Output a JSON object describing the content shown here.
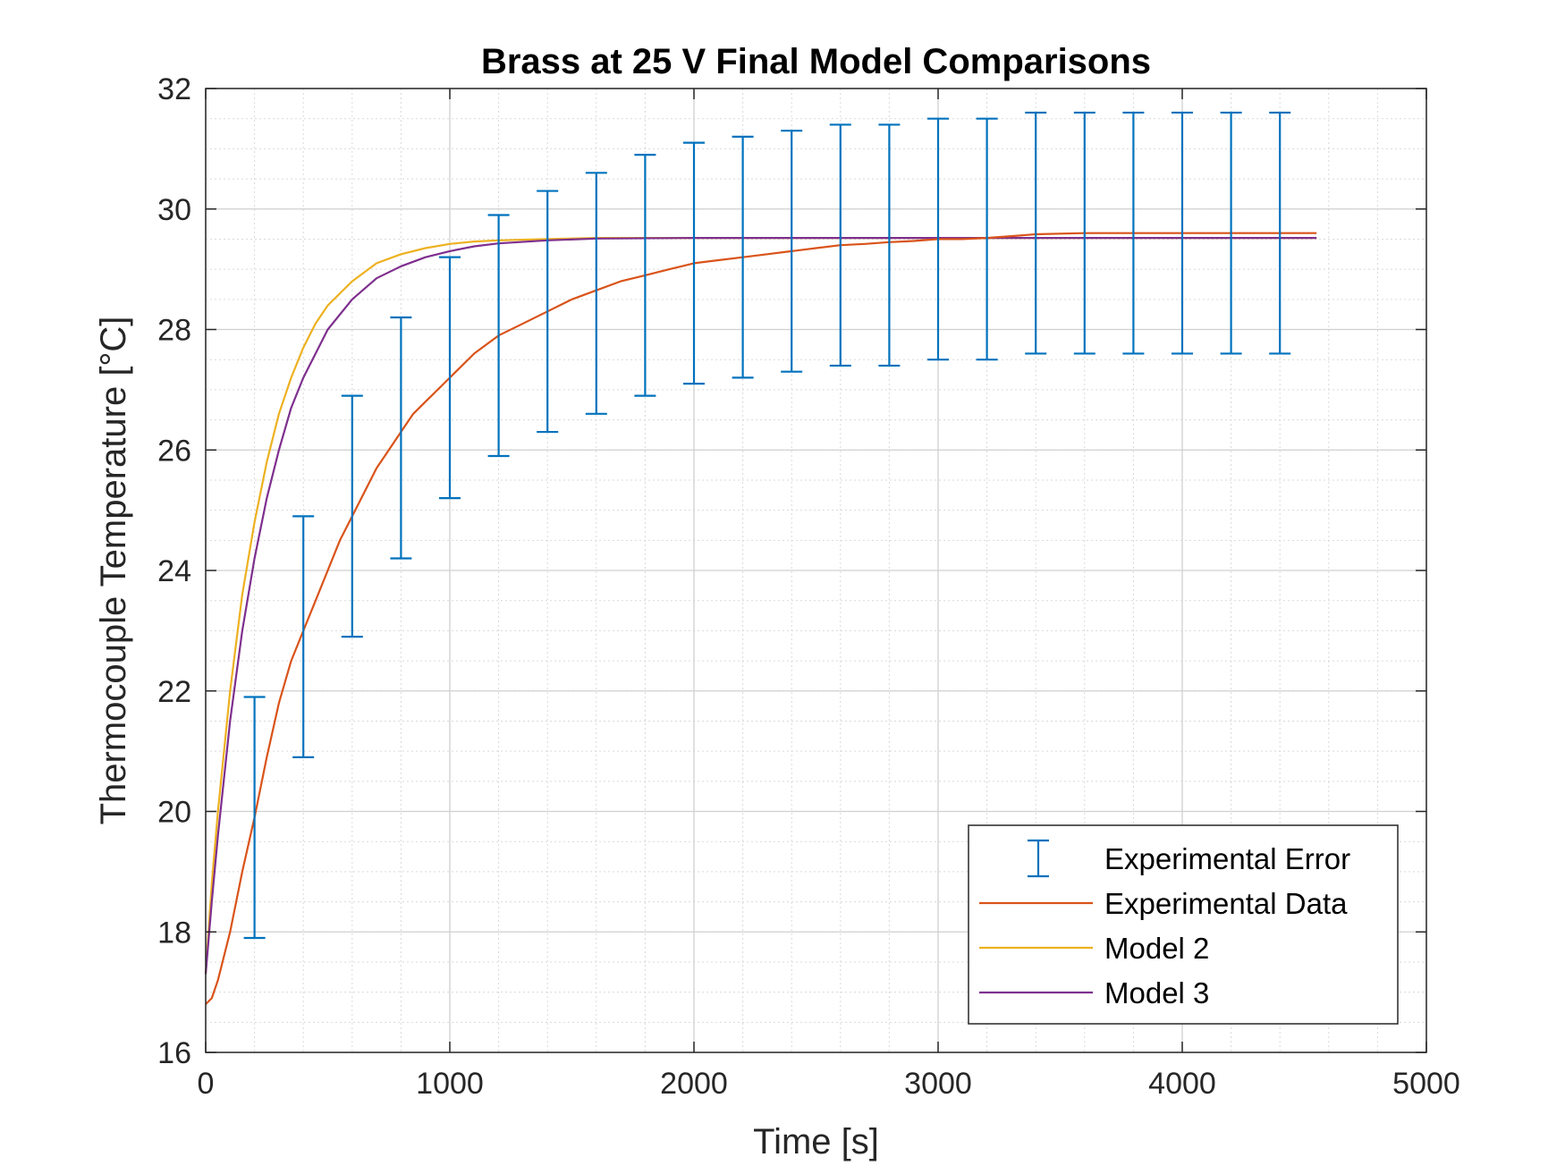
{
  "chart_data": {
    "type": "line",
    "title": "Brass at 25 V Final Model Comparisons",
    "xlabel": "Time [s]",
    "ylabel": "Thermocouple Temperature [°C]",
    "xlim": [
      0,
      5000
    ],
    "ylim": [
      16,
      32
    ],
    "xticks": [
      0,
      1000,
      2000,
      3000,
      4000,
      5000
    ],
    "yticks": [
      16,
      18,
      20,
      22,
      24,
      26,
      28,
      30,
      32
    ],
    "xtick_labels": [
      "0",
      "1000",
      "2000",
      "3000",
      "4000",
      "5000"
    ],
    "ytick_labels": [
      "16",
      "18",
      "20",
      "22",
      "24",
      "26",
      "28",
      "30",
      "32"
    ],
    "grid": true,
    "minor_grid": true,
    "legend_position": "bottom-right",
    "legend": [
      "Experimental Error",
      "Experimental Data",
      "Model 2",
      "Model 3"
    ],
    "series": [
      {
        "name": "Experimental Error",
        "kind": "errorbar",
        "color": "#0072BD",
        "x": [
          200,
          400,
          600,
          800,
          1000,
          1200,
          1400,
          1600,
          1800,
          2000,
          2200,
          2400,
          2600,
          2800,
          3000,
          3200,
          3400,
          3600,
          3800,
          4000,
          4200,
          4400
        ],
        "lower": [
          17.9,
          20.9,
          22.9,
          24.2,
          25.2,
          25.9,
          26.3,
          26.6,
          26.9,
          27.1,
          27.2,
          27.3,
          27.4,
          27.4,
          27.5,
          27.5,
          27.6,
          27.6,
          27.6,
          27.6,
          27.6,
          27.6
        ],
        "upper": [
          21.9,
          24.9,
          26.9,
          28.2,
          29.2,
          29.9,
          30.3,
          30.6,
          30.9,
          31.1,
          31.2,
          31.3,
          31.4,
          31.4,
          31.5,
          31.5,
          31.6,
          31.6,
          31.6,
          31.6,
          31.6,
          31.6
        ]
      },
      {
        "name": "Experimental Data",
        "kind": "line",
        "color": "#D95319",
        "x": [
          0,
          25,
          50,
          100,
          150,
          200,
          250,
          300,
          350,
          400,
          450,
          500,
          550,
          600,
          650,
          700,
          750,
          800,
          850,
          900,
          950,
          1000,
          1100,
          1200,
          1300,
          1400,
          1500,
          1600,
          1700,
          1800,
          1900,
          2000,
          2100,
          2200,
          2300,
          2400,
          2500,
          2600,
          2700,
          2800,
          2900,
          3000,
          3100,
          3200,
          3300,
          3400,
          3600,
          3800,
          4000,
          4200,
          4400,
          4550
        ],
        "y": [
          16.8,
          16.9,
          17.2,
          18.0,
          19.0,
          19.9,
          20.9,
          21.8,
          22.5,
          23.0,
          23.5,
          24.0,
          24.5,
          24.9,
          25.3,
          25.7,
          26.0,
          26.3,
          26.6,
          26.8,
          27.0,
          27.2,
          27.6,
          27.9,
          28.1,
          28.3,
          28.5,
          28.65,
          28.8,
          28.9,
          29.0,
          29.1,
          29.15,
          29.2,
          29.25,
          29.3,
          29.35,
          29.4,
          29.42,
          29.45,
          29.47,
          29.5,
          29.5,
          29.52,
          29.55,
          29.58,
          29.6,
          29.6,
          29.6,
          29.6,
          29.6,
          29.6
        ]
      },
      {
        "name": "Model 2",
        "kind": "line",
        "color": "#EDB120",
        "x": [
          0,
          25,
          50,
          100,
          150,
          200,
          250,
          300,
          350,
          400,
          450,
          500,
          600,
          700,
          800,
          900,
          1000,
          1100,
          1200,
          1400,
          1600,
          2000,
          2500,
          3000,
          3500,
          4000,
          4550
        ],
        "y": [
          17.3,
          18.8,
          20.0,
          22.0,
          23.6,
          24.8,
          25.8,
          26.6,
          27.2,
          27.7,
          28.1,
          28.4,
          28.8,
          29.1,
          29.25,
          29.35,
          29.42,
          29.46,
          29.48,
          29.5,
          29.52,
          29.52,
          29.52,
          29.52,
          29.52,
          29.52,
          29.52
        ]
      },
      {
        "name": "Model 3",
        "kind": "line",
        "color": "#7E2F8E",
        "x": [
          0,
          25,
          50,
          100,
          150,
          200,
          250,
          300,
          350,
          400,
          450,
          500,
          600,
          700,
          800,
          900,
          1000,
          1100,
          1200,
          1400,
          1600,
          2000,
          2500,
          3000,
          3500,
          4000,
          4550
        ],
        "y": [
          17.3,
          18.5,
          19.6,
          21.5,
          23.0,
          24.2,
          25.2,
          26.0,
          26.7,
          27.2,
          27.6,
          28.0,
          28.5,
          28.85,
          29.05,
          29.2,
          29.3,
          29.38,
          29.43,
          29.48,
          29.51,
          29.52,
          29.52,
          29.52,
          29.52,
          29.52,
          29.52
        ]
      }
    ]
  }
}
